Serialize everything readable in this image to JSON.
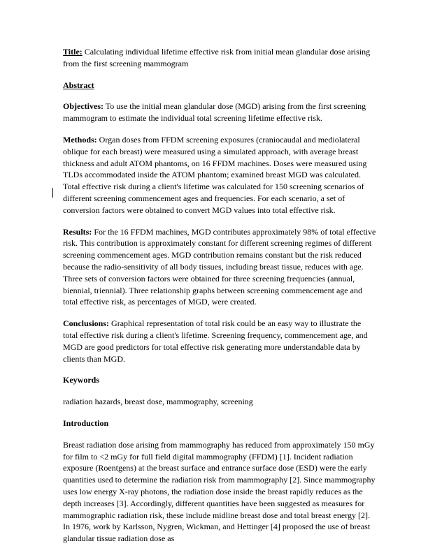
{
  "title": {
    "label": "Title:",
    "text": " Calculating individual lifetime effective risk from initial mean glandular dose arising from the first screening mammogram"
  },
  "abstract": {
    "heading": "Abstract",
    "objectives": {
      "label": "Objectives:",
      "text": " To use the initial mean glandular dose (MGD) arising from the first screening mammogram to estimate the individual total screening lifetime effective risk."
    },
    "methods": {
      "label": "Methods:",
      "text": " Organ doses from FFDM screening exposures (craniocaudal and mediolateral oblique for each breast) were measured using a simulated approach, with average breast thickness and adult ATOM phantoms, on 16 FFDM machines. Doses were measured using TLDs accommodated inside the ATOM phantom; examined breast MGD was calculated. Total effective risk during a client's lifetime was calculated for 150 screening scenarios of different screening commencement ages and frequencies. For each scenario, a set of conversion factors were obtained to convert MGD values into total effective risk."
    },
    "results": {
      "label": "Results:",
      "text": " For the 16 FFDM machines, MGD contributes approximately 98% of total effective risk. This contribution is approximately constant for different screening regimes of different screening commencement ages. MGD contribution remains constant but the risk reduced because the radio-sensitivity of all body tissues, including breast tissue, reduces with age. Three sets of conversion factors were obtained for three screening frequencies (annual, biennial, triennial). Three relationship graphs between screening commencement age and total effective risk, as percentages of MGD, were created."
    },
    "conclusions": {
      "label": "Conclusions:",
      "text": " Graphical representation of total risk could be an easy way to illustrate the total effective risk during a client's lifetime. Screening frequency, commencement age, and MGD are good predictors for total effective risk generating more understandable data by clients than MGD."
    }
  },
  "keywords": {
    "heading": "Keywords",
    "text": "radiation hazards, breast dose, mammography, screening"
  },
  "introduction": {
    "heading": "Introduction",
    "text": "Breast radiation dose arising from mammography has reduced from approximately 150 mGy for film to <2 mGy for full field digital mammography (FFDM) [1]. Incident radiation exposure (Roentgens) at the breast surface and entrance surface dose (ESD) were the early quantities used to determine the radiation risk from mammography [2]. Since mammography uses low energy X-ray photons, the radiation dose inside the breast rapidly reduces as the depth increases [3]. Accordingly, different quantities have been suggested as measures for mammographic radiation risk, these include midline breast dose and total breast energy [2]. In 1976, work by Karlsson, Nygren, Wickman, and Hettinger [4] proposed the use of breast glandular tissue radiation dose as"
  }
}
